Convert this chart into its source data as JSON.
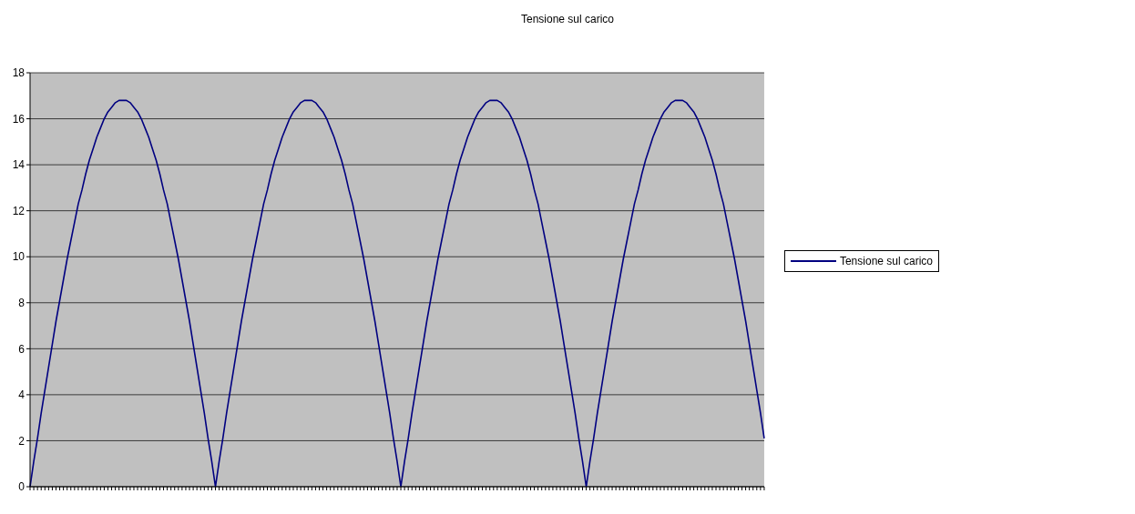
{
  "chart_data": {
    "type": "line",
    "title": "Tensione sul carico",
    "categories": [
      null,
      null,
      null,
      null,
      null,
      null,
      null,
      null,
      null,
      null,
      null,
      null,
      null,
      null,
      null,
      null,
      null,
      null,
      null,
      null,
      null,
      null,
      null,
      null,
      null,
      null,
      null,
      null,
      null,
      null,
      null,
      null,
      null,
      null,
      null,
      null,
      null,
      null,
      null,
      null,
      null,
      null,
      null,
      null,
      null,
      null,
      null,
      null,
      null,
      null,
      null,
      null,
      null,
      null,
      null,
      null,
      null,
      null,
      null,
      null,
      null,
      null,
      null,
      null,
      null,
      null,
      null,
      null,
      null,
      null,
      null,
      null,
      null,
      null,
      null,
      null,
      null,
      null,
      null,
      null,
      null,
      null,
      null,
      null,
      null,
      null,
      null,
      null,
      null,
      null,
      null,
      null,
      null,
      null,
      null,
      null,
      null,
      null,
      null,
      null,
      null,
      null,
      null,
      null,
      null,
      null,
      null,
      null,
      null,
      null,
      null,
      null,
      null,
      null,
      null,
      null,
      null,
      null,
      null,
      null,
      null,
      null,
      null,
      null,
      null,
      null,
      null,
      null,
      null,
      null,
      null,
      null,
      null,
      null,
      null,
      null,
      null,
      null,
      null,
      null,
      null,
      null,
      null,
      null,
      null,
      null,
      null,
      null,
      null,
      null,
      null,
      null,
      null,
      null,
      null,
      null,
      null,
      null,
      null,
      null,
      null,
      null,
      null,
      null,
      null,
      null,
      null,
      null,
      null,
      null,
      null,
      null,
      null,
      null,
      null,
      null,
      null,
      null,
      null,
      null,
      null,
      null,
      null,
      null,
      null,
      null,
      null,
      null,
      null,
      null,
      null,
      null,
      null,
      null,
      null,
      null,
      null,
      null,
      null
    ],
    "series": [
      {
        "name": "Tensione sul carico",
        "color": "#000080",
        "values": [
          0,
          1.1,
          2.1,
          3.2,
          4.2,
          5.2,
          6.2,
          7.2,
          8.1,
          9.0,
          9.9,
          10.7,
          11.5,
          12.3,
          12.9,
          13.6,
          14.2,
          14.7,
          15.2,
          15.6,
          16.0,
          16.3,
          16.5,
          16.7,
          16.8,
          16.8,
          16.8,
          16.7,
          16.5,
          16.3,
          16.0,
          15.6,
          15.2,
          14.7,
          14.2,
          13.6,
          12.9,
          12.3,
          11.5,
          10.7,
          9.9,
          9.0,
          8.1,
          7.2,
          6.2,
          5.2,
          4.2,
          3.2,
          2.1,
          1.1,
          0,
          1.1,
          2.1,
          3.2,
          4.2,
          5.2,
          6.2,
          7.2,
          8.1,
          9.0,
          9.9,
          10.7,
          11.5,
          12.3,
          12.9,
          13.6,
          14.2,
          14.7,
          15.2,
          15.6,
          16.0,
          16.3,
          16.5,
          16.7,
          16.8,
          16.8,
          16.8,
          16.7,
          16.5,
          16.3,
          16.0,
          15.6,
          15.2,
          14.7,
          14.2,
          13.6,
          12.9,
          12.3,
          11.5,
          10.7,
          9.9,
          9.0,
          8.1,
          7.2,
          6.2,
          5.2,
          4.2,
          3.2,
          2.1,
          1.1,
          0,
          1.1,
          2.1,
          3.2,
          4.2,
          5.2,
          6.2,
          7.2,
          8.1,
          9.0,
          9.9,
          10.7,
          11.5,
          12.3,
          12.9,
          13.6,
          14.2,
          14.7,
          15.2,
          15.6,
          16.0,
          16.3,
          16.5,
          16.7,
          16.8,
          16.8,
          16.8,
          16.7,
          16.5,
          16.3,
          16.0,
          15.6,
          15.2,
          14.7,
          14.2,
          13.6,
          12.9,
          12.3,
          11.5,
          10.7,
          9.9,
          9.0,
          8.1,
          7.2,
          6.2,
          5.2,
          4.2,
          3.2,
          2.1,
          1.1,
          0,
          1.1,
          2.1,
          3.2,
          4.2,
          5.2,
          6.2,
          7.2,
          8.1,
          9.0,
          9.9,
          10.7,
          11.5,
          12.3,
          12.9,
          13.6,
          14.2,
          14.7,
          15.2,
          15.6,
          16.0,
          16.3,
          16.5,
          16.7,
          16.8,
          16.8,
          16.8,
          16.7,
          16.5,
          16.3,
          16.0,
          15.6,
          15.2,
          14.7,
          14.2,
          13.6,
          12.9,
          12.3,
          11.5,
          10.7,
          9.9,
          9.0,
          8.1,
          7.2,
          6.2,
          5.2,
          4.2,
          3.2,
          2.1
        ]
      }
    ],
    "ylim": [
      0,
      18
    ],
    "yticks": [
      0,
      2,
      4,
      6,
      8,
      10,
      12,
      14,
      16,
      18
    ],
    "grid": "y",
    "legend": "right",
    "marker": "none",
    "line_style": "solid"
  }
}
